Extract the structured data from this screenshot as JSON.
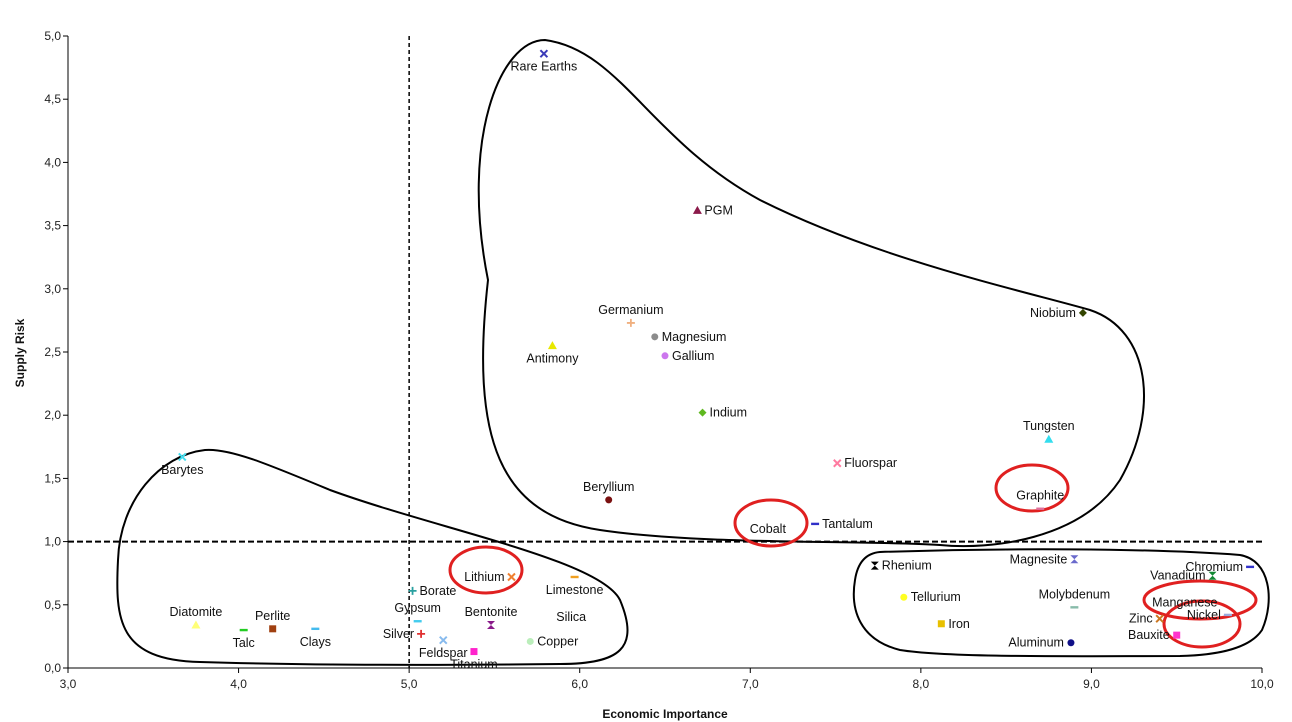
{
  "chart_data": {
    "type": "scatter",
    "xlabel": "Economic Importance",
    "ylabel": "Supply Risk",
    "xlim": [
      3.0,
      10.0
    ],
    "ylim": [
      0.0,
      5.0
    ],
    "xticks": [
      "3,0",
      "4,0",
      "5,0",
      "6,0",
      "7,0",
      "8,0",
      "9,0",
      "10,0"
    ],
    "yticks": [
      "0,0",
      "0,5",
      "1,0",
      "1,5",
      "2,0",
      "2,5",
      "3,0",
      "3,5",
      "4,0",
      "4,5",
      "5,0"
    ],
    "threshold_x": 5.0,
    "threshold_y": 1.0,
    "grid": false,
    "points": [
      {
        "name": "Rare Earths",
        "x": 5.79,
        "y": 4.86,
        "color": "#3b3bb8",
        "marker": "x",
        "label_pos": "below"
      },
      {
        "name": "PGM",
        "x": 6.69,
        "y": 3.62,
        "color": "#8b1a4a",
        "marker": "triangle",
        "label_pos": "right"
      },
      {
        "name": "Germanium",
        "x": 6.3,
        "y": 2.73,
        "color": "#f0b080",
        "marker": "plus",
        "label_pos": "above"
      },
      {
        "name": "Magnesium",
        "x": 6.44,
        "y": 2.62,
        "color": "#8c8c8c",
        "marker": "circle",
        "label_pos": "right"
      },
      {
        "name": "Gallium",
        "x": 6.5,
        "y": 2.47,
        "color": "#cc77ee",
        "marker": "circle",
        "label_pos": "right"
      },
      {
        "name": "Antimony",
        "x": 5.84,
        "y": 2.55,
        "color": "#e8e800",
        "marker": "triangle",
        "label_pos": "below"
      },
      {
        "name": "Indium",
        "x": 6.72,
        "y": 2.02,
        "color": "#5fb820",
        "marker": "diamond",
        "label_pos": "right"
      },
      {
        "name": "Beryllium",
        "x": 6.17,
        "y": 1.33,
        "color": "#7a1010",
        "marker": "circle",
        "label_pos": "above"
      },
      {
        "name": "Fluorspar",
        "x": 7.51,
        "y": 1.62,
        "color": "#ff7aa0",
        "marker": "x",
        "label_pos": "right"
      },
      {
        "name": "Tantalum",
        "x": 7.38,
        "y": 1.14,
        "color": "#3030c8",
        "marker": "dash",
        "label_pos": "right"
      },
      {
        "name": "Cobalt",
        "x": 7.25,
        "y": 1.1,
        "color": "#4040a0",
        "marker": "none",
        "label_pos": "left"
      },
      {
        "name": "Niobium",
        "x": 8.95,
        "y": 2.81,
        "color": "#334400",
        "marker": "diamond",
        "label_pos": "left"
      },
      {
        "name": "Tungsten",
        "x": 8.75,
        "y": 1.81,
        "color": "#33ddee",
        "marker": "triangle",
        "label_pos": "above"
      },
      {
        "name": "Graphite",
        "x": 8.7,
        "y": 1.26,
        "color": "#e0709c",
        "marker": "dash",
        "label_pos": "above"
      },
      {
        "name": "Barytes",
        "x": 3.67,
        "y": 1.67,
        "color": "#44ddee",
        "marker": "x",
        "label_pos": "below"
      },
      {
        "name": "Lithium",
        "x": 5.6,
        "y": 0.72,
        "color": "#f08030",
        "marker": "x",
        "label_pos": "left"
      },
      {
        "name": "Limestone",
        "x": 5.97,
        "y": 0.72,
        "color": "#f0a020",
        "marker": "dash",
        "label_pos": "below"
      },
      {
        "name": "Borate",
        "x": 5.02,
        "y": 0.61,
        "color": "#2aa0a0",
        "marker": "plus",
        "label_pos": "right"
      },
      {
        "name": "Gypsum",
        "x": 5.05,
        "y": 0.37,
        "color": "#44ccee",
        "marker": "dash",
        "label_pos": "above"
      },
      {
        "name": "Bentonite",
        "x": 5.48,
        "y": 0.34,
        "color": "#8a1a8a",
        "marker": "hourglass",
        "label_pos": "above"
      },
      {
        "name": "Silver",
        "x": 5.07,
        "y": 0.27,
        "color": "#e03030",
        "marker": "plus",
        "label_pos": "left"
      },
      {
        "name": "Feldspar",
        "x": 5.2,
        "y": 0.22,
        "color": "#88bbee",
        "marker": "x",
        "label_pos": "below"
      },
      {
        "name": "Titanium",
        "x": 5.38,
        "y": 0.13,
        "color": "#ff22cc",
        "marker": "square",
        "label_pos": "below"
      },
      {
        "name": "Copper",
        "x": 5.71,
        "y": 0.21,
        "color": "#bbeebb",
        "marker": "circle",
        "label_pos": "right"
      },
      {
        "name": "Silica",
        "x": 5.95,
        "y": 0.3,
        "color": "#55aa55",
        "marker": "none",
        "label_pos": "above"
      },
      {
        "name": "Diatomite",
        "x": 3.75,
        "y": 0.34,
        "color": "#ffff77",
        "marker": "triangle",
        "label_pos": "above"
      },
      {
        "name": "Talc",
        "x": 4.03,
        "y": 0.3,
        "color": "#22cc22",
        "marker": "dash",
        "label_pos": "below"
      },
      {
        "name": "Perlite",
        "x": 4.2,
        "y": 0.31,
        "color": "#a04010",
        "marker": "square",
        "label_pos": "above"
      },
      {
        "name": "Clays",
        "x": 4.45,
        "y": 0.31,
        "color": "#44bbee",
        "marker": "dash",
        "label_pos": "below"
      },
      {
        "name": "Rhenium",
        "x": 7.73,
        "y": 0.81,
        "color": "#000000",
        "marker": "hourglass",
        "label_pos": "right"
      },
      {
        "name": "Tellurium",
        "x": 7.9,
        "y": 0.56,
        "color": "#ffff22",
        "marker": "circle",
        "label_pos": "right"
      },
      {
        "name": "Iron",
        "x": 8.12,
        "y": 0.35,
        "color": "#e8c000",
        "marker": "square",
        "label_pos": "right"
      },
      {
        "name": "Magnesite",
        "x": 8.9,
        "y": 0.86,
        "color": "#6a6acc",
        "marker": "hourglass",
        "label_pos": "left"
      },
      {
        "name": "Molybdenum",
        "x": 8.9,
        "y": 0.48,
        "color": "#88bbaa",
        "marker": "dash",
        "label_pos": "above"
      },
      {
        "name": "Aluminum",
        "x": 8.88,
        "y": 0.2,
        "color": "#101088",
        "marker": "circle",
        "label_pos": "left"
      },
      {
        "name": "Chromium",
        "x": 9.93,
        "y": 0.8,
        "color": "#3333cc",
        "marker": "dash",
        "label_pos": "left"
      },
      {
        "name": "Vanadium",
        "x": 9.71,
        "y": 0.73,
        "color": "#118833",
        "marker": "hourglass",
        "label_pos": "left"
      },
      {
        "name": "Manganese",
        "x": 9.78,
        "y": 0.52,
        "color": "#cc3377",
        "marker": "none",
        "label_pos": "left"
      },
      {
        "name": "Zinc",
        "x": 9.4,
        "y": 0.39,
        "color": "#cc7722",
        "marker": "x",
        "label_pos": "left"
      },
      {
        "name": "Nickel",
        "x": 9.8,
        "y": 0.42,
        "color": "#99aadd",
        "marker": "dash",
        "label_pos": "left"
      },
      {
        "name": "Bauxite",
        "x": 9.5,
        "y": 0.26,
        "color": "#ff33cc",
        "marker": "square",
        "label_pos": "left"
      }
    ],
    "highlighted": [
      "Cobalt",
      "Graphite",
      "Lithium",
      "Manganese",
      "Nickel"
    ],
    "groups": [
      "critical",
      "high-risk-low-importance",
      "high-importance-low-risk"
    ]
  }
}
